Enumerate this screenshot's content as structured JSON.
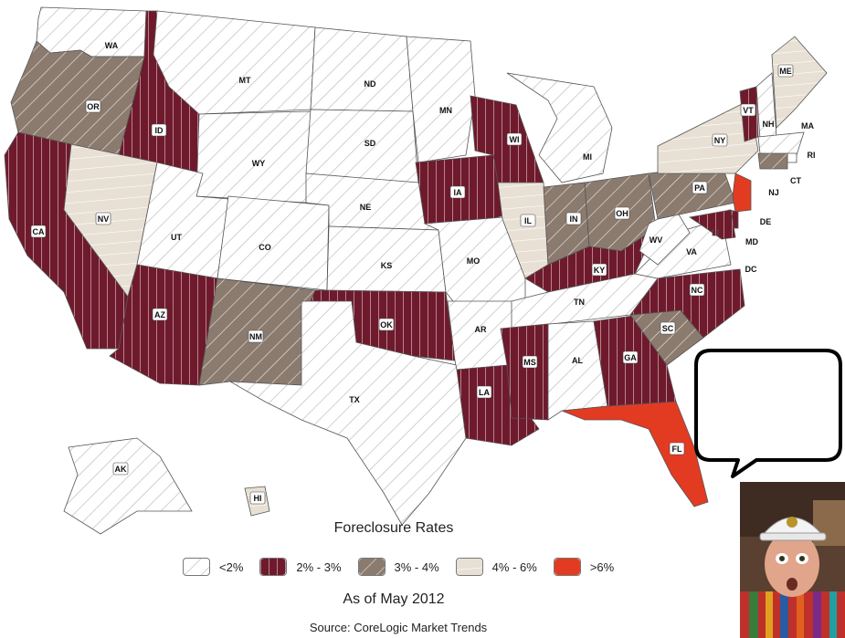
{
  "title": "Foreclosure Rates",
  "date": "As of May 2012",
  "source": "Source: CoreLogic Market Trends",
  "legend": [
    {
      "label": "<2%",
      "category": "lt2",
      "color": "#ffffff"
    },
    {
      "label": "2% - 3%",
      "category": "c2to3",
      "color": "#6e1a2c"
    },
    {
      "label": "3% - 4%",
      "category": "c3to4",
      "color": "#8b7b6f"
    },
    {
      "label": "4% - 6%",
      "category": "c4to6",
      "color": "#e8e0d4"
    },
    {
      "label": ">6%",
      "category": "gt6",
      "color": "#e23b22"
    }
  ],
  "states": {
    "WA": "lt2",
    "OR": "c3to4",
    "CA": "c2to3",
    "ID": "c2to3",
    "NV": "c4to6",
    "MT": "lt2",
    "WY": "lt2",
    "UT": "lt2",
    "AZ": "c2to3",
    "CO": "lt2",
    "NM": "c3to4",
    "ND": "lt2",
    "SD": "lt2",
    "NE": "lt2",
    "KS": "lt2",
    "OK": "c2to3",
    "TX": "lt2",
    "MN": "lt2",
    "IA": "c2to3",
    "MO": "lt2",
    "AR": "lt2",
    "LA": "c2to3",
    "WI": "c2to3",
    "IL": "c4to6",
    "MI": "lt2",
    "IN": "c3to4",
    "OH": "c3to4",
    "KY": "c2to3",
    "TN": "lt2",
    "MS": "c2to3",
    "AL": "lt2",
    "GA": "c2to3",
    "FL": "gt6",
    "SC": "c3to4",
    "NC": "c2to3",
    "VA": "lt2",
    "WV": "lt2",
    "PA": "c3to4",
    "NY": "c4to6",
    "VT": "c2to3",
    "NH": "lt2",
    "ME": "c4to6",
    "MA": "lt2",
    "RI": "lt2",
    "CT": "c3to4",
    "NJ": "gt6",
    "DE": "c2to3",
    "MD": "c2to3",
    "DC": "c2to3",
    "AK": "lt2",
    "HI": "c4to6"
  }
}
